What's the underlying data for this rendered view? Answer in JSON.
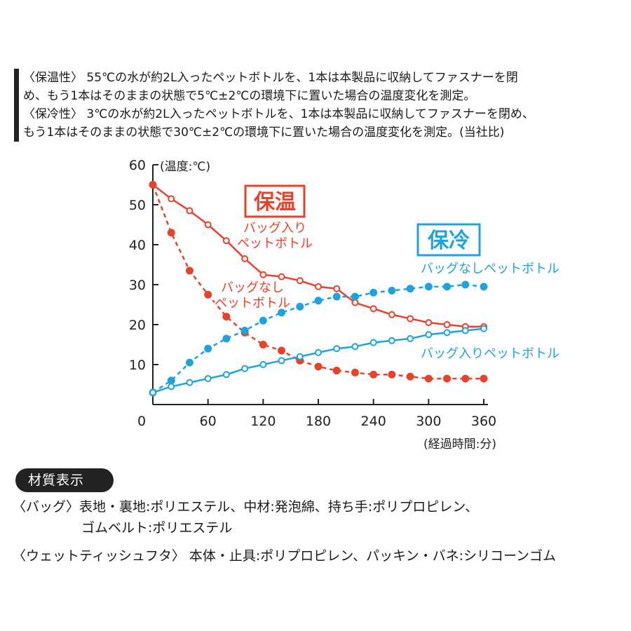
{
  "description": {
    "lines": [
      "〈保温性〉 55℃の水が約2L入ったペットボトルを、1本は本製品に収納してファスナーを閉",
      "め、もう1本はそのままの状態で5℃±2℃の環境下に置いた場合の温度変化を測定。",
      "〈保冷性〉 3℃の水が約2L入ったペットボトルを、1本は本製品に収納してファスナーを閉め、",
      "もう1本はそのままの状態で30℃±2℃の環境下に置いた場合の温度変化を測定。(当社比)"
    ]
  },
  "chart_data": {
    "type": "line",
    "ylabel": "(温度:℃)",
    "xlabel": "(経過時間:分)",
    "xlim": [
      0,
      360
    ],
    "ylim": [
      0,
      60
    ],
    "xticks": [
      "0",
      "60",
      "120",
      "180",
      "240",
      "300",
      "360"
    ],
    "yticks": [
      "10",
      "20",
      "30",
      "40",
      "50",
      "60"
    ],
    "groups": [
      {
        "title": "保温",
        "color": "#e8432a"
      },
      {
        "title": "保冷",
        "color": "#1fa3dc"
      }
    ],
    "series": [
      {
        "name_lines": [
          "バッグ入り",
          "ペットボトル"
        ],
        "group": "保温",
        "color": "#e8432a",
        "style": "solid",
        "marker": "hollow",
        "x": [
          0,
          20,
          40,
          60,
          80,
          100,
          120,
          140,
          160,
          180,
          200,
          220,
          240,
          260,
          280,
          300,
          320,
          340,
          360
        ],
        "values": [
          55,
          51.5,
          48.5,
          45,
          41,
          36.5,
          32.5,
          32,
          31,
          29.5,
          29,
          25.5,
          24,
          22.5,
          21.5,
          20.5,
          20,
          19.5,
          19.5
        ]
      },
      {
        "name_lines": [
          "バッグなし",
          "ペットボトル"
        ],
        "group": "保温",
        "color": "#e8432a",
        "style": "dashed",
        "marker": "filled",
        "x": [
          0,
          20,
          40,
          60,
          80,
          100,
          120,
          140,
          160,
          180,
          200,
          220,
          240,
          260,
          280,
          300,
          320,
          340,
          360
        ],
        "values": [
          55,
          43,
          33.5,
          27.5,
          22,
          18,
          15,
          13.5,
          11,
          9.5,
          8.5,
          8,
          7.5,
          7.5,
          7,
          6.5,
          6.5,
          6.5,
          6.5
        ]
      },
      {
        "name_lines": [
          "バッグなしペットボトル"
        ],
        "group": "保冷",
        "color": "#1fa3dc",
        "style": "dashed",
        "marker": "filled",
        "x": [
          0,
          20,
          40,
          60,
          80,
          100,
          120,
          140,
          160,
          180,
          200,
          220,
          240,
          260,
          280,
          300,
          320,
          340,
          360
        ],
        "values": [
          3,
          6,
          10.5,
          14,
          16.5,
          18.5,
          21,
          23,
          24.5,
          26,
          27,
          27,
          28,
          28.5,
          29,
          29.5,
          29.5,
          30,
          29.5
        ]
      },
      {
        "name_lines": [
          "バッグ入りペットボトル"
        ],
        "group": "保冷",
        "color": "#1fa3dc",
        "style": "solid",
        "marker": "hollow",
        "x": [
          0,
          20,
          40,
          60,
          80,
          100,
          120,
          140,
          160,
          180,
          200,
          220,
          240,
          260,
          280,
          300,
          320,
          340,
          360
        ],
        "values": [
          3,
          4.5,
          5.5,
          6.5,
          7.5,
          9,
          10,
          11,
          12,
          13,
          14,
          14.5,
          15.5,
          16,
          16.5,
          17.5,
          18,
          18.5,
          19
        ]
      }
    ]
  },
  "materials": {
    "badge": "材質表示",
    "bag_line1": "〈バッグ〉表地・裏地:ポリエステル、中材:発泡綿、持ち手:ポリプロピレン、",
    "bag_line2": "ゴムベルト:ポリエステル",
    "lid_line": "〈ウェットティッシュフタ〉 本体・止具:ポリプロピレン、パッキン・バネ:シリコーンゴム"
  }
}
